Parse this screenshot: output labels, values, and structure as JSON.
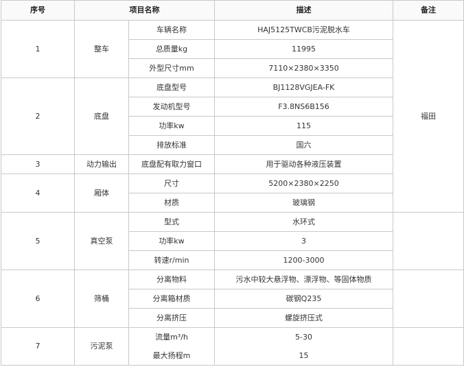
{
  "header": {
    "no": "序号",
    "item": "项目名称",
    "desc": "描述",
    "note": "备注"
  },
  "groups": [
    {
      "no": "1",
      "name": "整车",
      "rows": [
        {
          "item": "车辆名称",
          "desc": "HAJ5125TWCB污泥脱水车"
        },
        {
          "item": "总质量kg",
          "desc": "11995"
        },
        {
          "item": "外型尺寸mm",
          "desc": "7110×2380×3350"
        }
      ]
    },
    {
      "no": "2",
      "name": "底盘",
      "rows": [
        {
          "item": "底盘型号",
          "desc": "BJ1128VGJEA-FK"
        },
        {
          "item": "发动机型号",
          "desc": "F3.8NS6B156"
        },
        {
          "item": "功率kw",
          "desc": "115"
        },
        {
          "item": "排放标准",
          "desc": "国六"
        }
      ]
    },
    {
      "no": "3",
      "name": "动力输出",
      "rows": [
        {
          "item": "底盘配有取力窗口",
          "desc": "用于驱动各种液压装置"
        }
      ]
    },
    {
      "no": "4",
      "name": "厢体",
      "rows": [
        {
          "item": "尺寸",
          "desc": "5200×2380×2250"
        },
        {
          "item": "材质",
          "desc": "玻璃钢"
        }
      ]
    },
    {
      "no": "5",
      "name": "真空泵",
      "rows": [
        {
          "item": "型式",
          "desc": "水环式"
        },
        {
          "item": "功率kw",
          "desc": "3"
        },
        {
          "item": "转速r/min",
          "desc": "1200-3000"
        }
      ]
    },
    {
      "no": "6",
      "name": "筛桶",
      "rows": [
        {
          "item": "分离物料",
          "desc": "污水中较大悬浮物、漂浮物、等固体物质"
        },
        {
          "item": "分离箱材质",
          "desc": "碳钢Q235"
        },
        {
          "item": "分离挤压",
          "desc": "螺旋挤压式"
        }
      ]
    },
    {
      "no": "7",
      "name": "污泥泵",
      "rows": [
        {
          "item": "流量m³/h",
          "desc": "5-30"
        },
        {
          "item": "最大扬程m",
          "desc": "15"
        }
      ]
    }
  ],
  "note_1_2": "福田"
}
